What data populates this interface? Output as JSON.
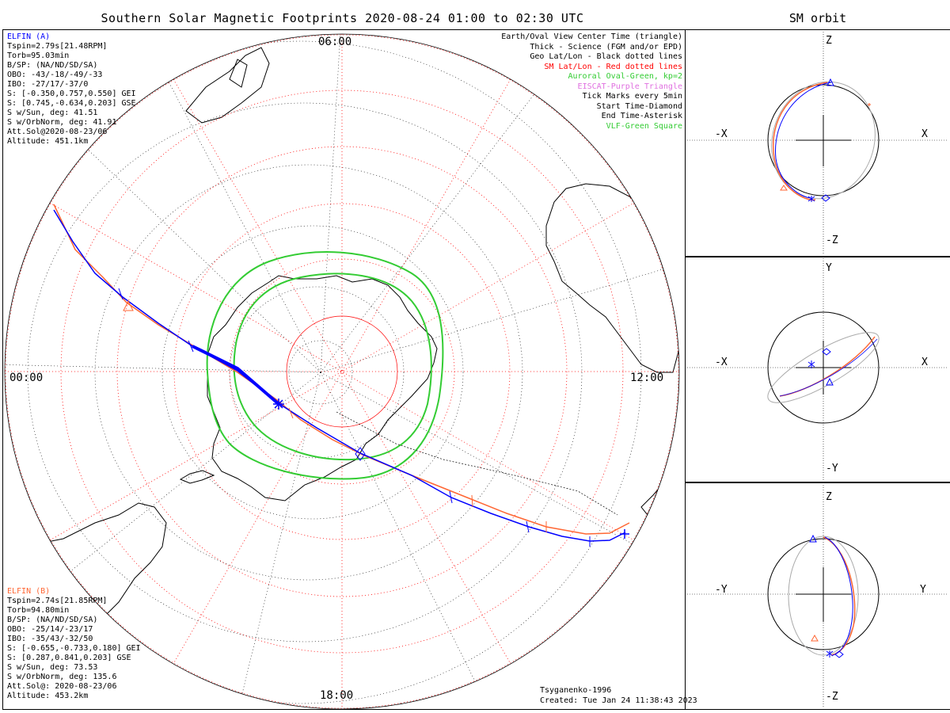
{
  "title": "Southern Solar Magnetic Footprints 2020-08-24 01:00 to 02:30 UTC",
  "sm_title": "SM orbit",
  "hour_labels": {
    "top": "06:00",
    "left": "00:00",
    "right": "12:00",
    "bottom": "18:00"
  },
  "legend": [
    {
      "text": "Earth/Oval View Center Time (triangle)",
      "color": "#000000"
    },
    {
      "text": "Thick - Science (FGM and/or EPD)",
      "color": "#000000"
    },
    {
      "text": "Geo Lat/Lon - Black dotted lines",
      "color": "#000000"
    },
    {
      "text": "SM Lat/Lon - Red dotted lines",
      "color": "#ff0000"
    },
    {
      "text": "Auroral Oval-Green, kp=2",
      "color": "#33cc33"
    },
    {
      "text": "EISCAT-Purple Triangle",
      "color": "#e070e0"
    },
    {
      "text": "Tick Marks every 5min",
      "color": "#000000"
    },
    {
      "text": "Start Time-Diamond",
      "color": "#000000"
    },
    {
      "text": "End Time-Asterisk",
      "color": "#000000"
    },
    {
      "text": "VLF-Green Square",
      "color": "#33cc33"
    }
  ],
  "elfin_a": {
    "name": "ELFIN (A)",
    "color": "#0000ff",
    "lines": [
      "Tspin=2.79s[21.48RPM]",
      "Torb=95.03min",
      "B/SP: (NA/ND/SD/SA)",
      "OBO: -43/-18/-49/-33",
      "IBO: -27/17/-37/0",
      "S: [-0.350,0.757,0.550] GEI",
      "S: [0.745,-0.634,0.203] GSE",
      "S w/Sun, deg: 41.51",
      "S w/OrbNorm, deg: 41.91",
      "Att.Sol@2020-08-23/06",
      "Altitude: 451.1km"
    ]
  },
  "elfin_b": {
    "name": "ELFIN (B)",
    "color": "#ff6633",
    "lines": [
      "Tspin=2.74s[21.85RPM]",
      "Torb=94.80min",
      "B/SP: (NA/ND/SD/SA)",
      "OBO: -25/14/-23/17",
      "IBO: -35/43/-32/50",
      "S: [-0.655,-0.733,0.180] GEI",
      "S: [0.287,0.841,0.203] GSE",
      "S w/Sun, deg: 73.53",
      "S w/OrbNorm, deg: 135.6",
      "Att.Sol@: 2020-08-23/06",
      "Altitude: 453.2km"
    ]
  },
  "footer": {
    "model": "Tsyganenko-1996",
    "created": "Created: Tue Jan 24 11:38:43 2023"
  },
  "panels": [
    {
      "top": "Z",
      "bottom": "-Z",
      "left": "-X",
      "right": "X"
    },
    {
      "top": "Y",
      "bottom": "-Y",
      "left": "-X",
      "right": "X"
    },
    {
      "top": "Z",
      "bottom": "-Z",
      "left": "-Y",
      "right": "Y"
    }
  ],
  "colors": {
    "elfin_a": "#0000ff",
    "elfin_b": "#ff6633",
    "sm_grid": "#ff0000",
    "oval": "#33cc33",
    "geo_grid": "#000000",
    "orbit_back": "#aaaaaa"
  }
}
